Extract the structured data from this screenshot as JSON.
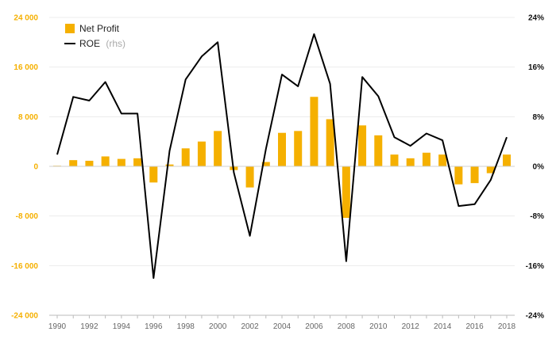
{
  "chart_data": {
    "type": "bar",
    "x": [
      1990,
      1991,
      1992,
      1993,
      1994,
      1995,
      1996,
      1997,
      1998,
      1999,
      2000,
      2001,
      2002,
      2003,
      2004,
      2005,
      2006,
      2007,
      2008,
      2009,
      2010,
      2011,
      2012,
      2013,
      2014,
      2015,
      2016,
      2017,
      2018
    ],
    "x_tick_labels": [
      "1990",
      "1992",
      "1994",
      "1996",
      "1998",
      "2000",
      "2002",
      "2004",
      "2006",
      "2008",
      "2010",
      "2012",
      "2014",
      "2016",
      "2018"
    ],
    "series": [
      {
        "name": "Net Profit",
        "type": "bar",
        "axis": "left",
        "color": "#f5b000",
        "values": [
          100,
          1000,
          900,
          1600,
          1200,
          1300,
          -2600,
          300,
          2900,
          4000,
          5700,
          -600,
          -3400,
          700,
          5400,
          5700,
          11200,
          7600,
          -8300,
          6600,
          5000,
          1900,
          1300,
          2200,
          1900,
          -2900,
          -2700,
          -1100,
          1900
        ]
      },
      {
        "name": "ROE",
        "name_suffix": "(rhs)",
        "type": "line",
        "axis": "right",
        "color": "#000000",
        "values": [
          1.9,
          11.2,
          10.6,
          13.6,
          8.5,
          8.5,
          -18.0,
          2.5,
          14.0,
          17.7,
          20.0,
          -1.0,
          -11.2,
          2.8,
          14.8,
          12.9,
          21.3,
          13.3,
          -15.3,
          14.4,
          11.3,
          4.7,
          3.3,
          5.3,
          4.2,
          -6.4,
          -6.1,
          -2.2,
          4.7
        ]
      }
    ],
    "y_left": {
      "range": [
        -24000,
        24000
      ],
      "ticks": [
        -24000,
        -16000,
        -8000,
        0,
        8000,
        16000,
        24000
      ],
      "tick_labels": [
        "-24 000",
        "-16 000",
        "-8 000",
        "0",
        "8 000",
        "16 000",
        "24 000"
      ],
      "color": "#f5b000"
    },
    "y_right": {
      "range": [
        -24,
        24
      ],
      "ticks": [
        -24,
        -16,
        -8,
        0,
        8,
        16,
        24
      ],
      "tick_labels": [
        "-24%",
        "-16%",
        "-8%",
        "0%",
        "8%",
        "16%",
        "24%"
      ],
      "color": "#111111"
    },
    "grid": true,
    "legend_position": "top-left",
    "title": "",
    "xlabel": "",
    "ylabel": ""
  }
}
